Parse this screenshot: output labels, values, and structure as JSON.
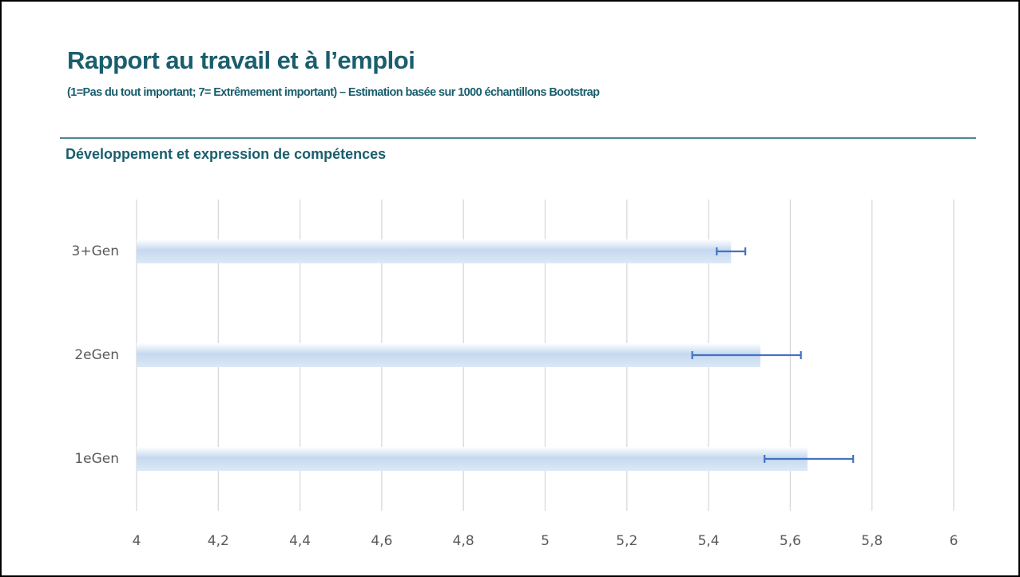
{
  "header": {
    "title": "Rapport au travail et à l’emploi",
    "subtitle": "(1=Pas du tout important; 7= Extrêmement important) – Estimation basée sur 1000 échantillons Bootstrap"
  },
  "chart_data": {
    "type": "bar",
    "orientation": "horizontal",
    "title": "Développement et expression de compétences",
    "categories": [
      "3+Gen",
      "2eGen",
      "1eGen"
    ],
    "values": [
      5.455,
      5.527,
      5.642
    ],
    "ci_low": [
      5.42,
      5.36,
      5.537
    ],
    "ci_high": [
      5.49,
      5.626,
      5.754
    ],
    "color": "#c5d9f0",
    "error_color": "#4472c4",
    "xlim": [
      4,
      6
    ],
    "xticks": [
      4,
      {
        "value": 4.2,
        "label": "4,2"
      },
      {
        "value": 4.4,
        "label": "4,4"
      },
      {
        "value": 4.6,
        "label": "4,6"
      },
      {
        "value": 4.8,
        "label": "4,8"
      },
      5,
      {
        "value": 5.2,
        "label": "5,2"
      },
      {
        "value": 5.4,
        "label": "5,4"
      },
      {
        "value": 5.6,
        "label": "5,6"
      },
      {
        "value": 5.8,
        "label": "5,8"
      },
      6
    ],
    "grid": true
  }
}
